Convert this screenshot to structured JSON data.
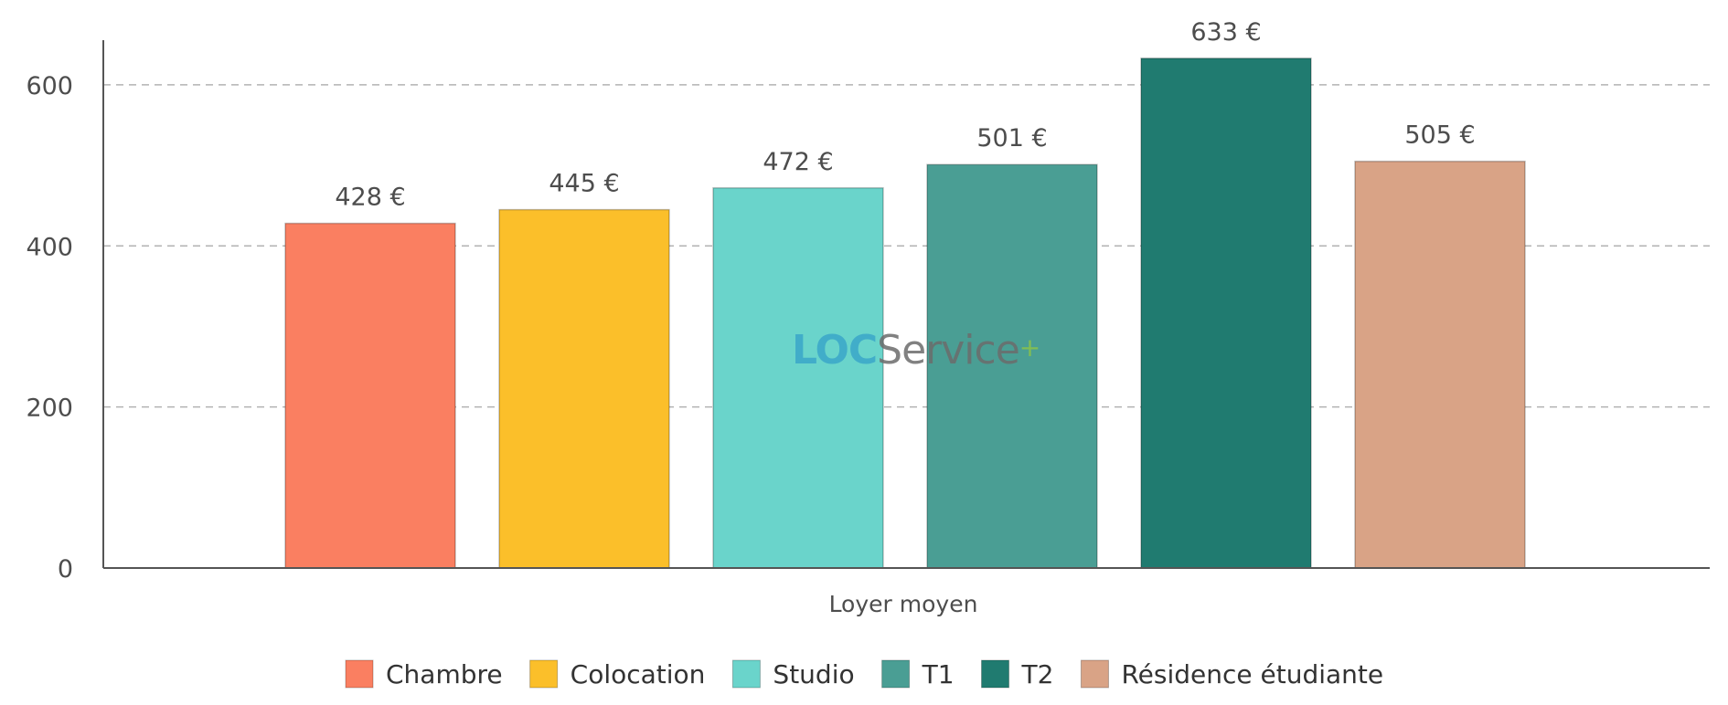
{
  "chart_data": {
    "type": "bar",
    "category_label": "Loyer moyen",
    "series": [
      {
        "name": "Chambre",
        "value": 428,
        "label": "428 €",
        "color": "#fa7f61"
      },
      {
        "name": "Colocation",
        "value": 445,
        "label": "445 €",
        "color": "#fbbf2a"
      },
      {
        "name": "Studio",
        "value": 472,
        "label": "472 €",
        "color": "#6ad4cb"
      },
      {
        "name": "T1",
        "value": 501,
        "label": "501 €",
        "color": "#4a9e94"
      },
      {
        "name": "T2",
        "value": 633,
        "label": "633 €",
        "color": "#207b70"
      },
      {
        "name": "Résidence étudiante",
        "value": 505,
        "label": "505 €",
        "color": "#d9a386"
      }
    ],
    "ylim": [
      0,
      660
    ],
    "yticks": [
      0,
      200,
      400,
      600
    ],
    "grid": "dashed horizontal",
    "legend_position": "bottom"
  },
  "watermark": {
    "part1": "LOC",
    "part2": "Service",
    "mark": "+"
  }
}
